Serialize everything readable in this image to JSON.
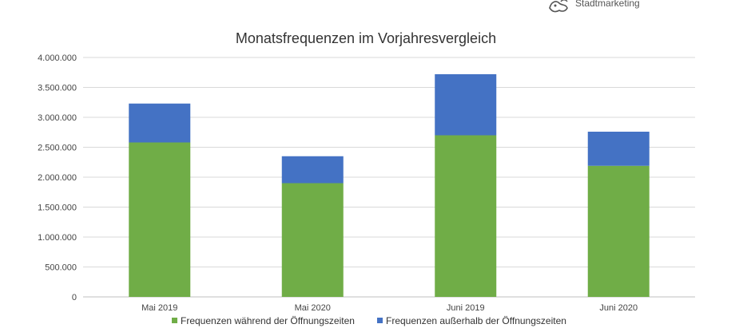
{
  "logo": {
    "text": "Stadtmarketing",
    "icon": "lion-icon"
  },
  "chart_data": {
    "type": "bar",
    "stacked": true,
    "title": "Monatsfrequenzen im Vorjahresvergleich",
    "categories": [
      "Mai 2019",
      "Mai 2020",
      "Juni 2019",
      "Juni 2020"
    ],
    "series": [
      {
        "name": "Frequenzen während der Öffnungszeiten",
        "color": "#70ad47",
        "values": [
          2580000,
          1900000,
          2700000,
          2190000
        ]
      },
      {
        "name": "Frequenzen außerhalb der Öffnungszeiten",
        "color": "#4472c4",
        "values": [
          650000,
          450000,
          1020000,
          570000
        ]
      }
    ],
    "ylim": [
      0,
      4000000
    ],
    "yticks": [
      "0",
      "500.000",
      "1.000.000",
      "1.500.000",
      "2.000.000",
      "2.500.000",
      "3.000.000",
      "3.500.000",
      "4.000.000"
    ],
    "ytick_values": [
      0,
      500000,
      1000000,
      1500000,
      2000000,
      2500000,
      3000000,
      3500000,
      4000000
    ],
    "grid": true,
    "legend_position": "bottom"
  }
}
